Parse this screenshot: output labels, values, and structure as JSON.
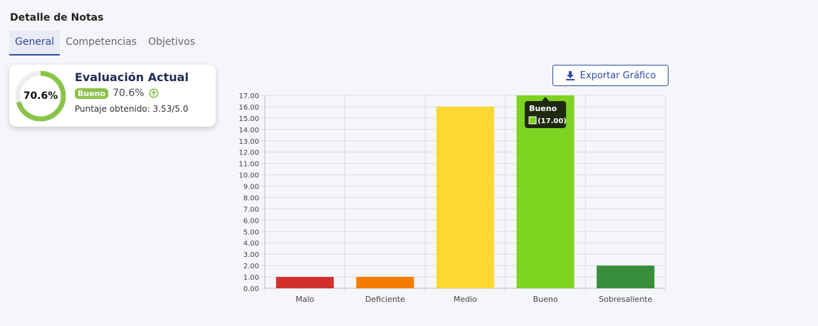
{
  "header": {
    "title": "Detalle de Notas"
  },
  "tabs": [
    {
      "label": "General",
      "active": true
    },
    {
      "label": "Competencias",
      "active": false
    },
    {
      "label": "Objetivos",
      "active": false
    }
  ],
  "summary_card": {
    "donut_label": "70.6%",
    "donut_value": 70.6,
    "title": "Evaluación Actual",
    "badge": "Bueno",
    "percent": "70.6%",
    "score_label": "Puntaje obtenido: 3.53/5.0",
    "accent_color": "#8bc34a"
  },
  "export_button": {
    "label": "Exportar Gráfico",
    "icon": "download-icon"
  },
  "chart_data": {
    "type": "bar",
    "categories": [
      "Malo",
      "Deficiente",
      "Medio",
      "Bueno",
      "Sobresaliente"
    ],
    "values": [
      1,
      1,
      16,
      17,
      2
    ],
    "colors": [
      "#d32f2f",
      "#f57c00",
      "#fdd835",
      "#7ed321",
      "#388e3c"
    ],
    "ylim": [
      0,
      17
    ],
    "ytick_step": 1,
    "grid": true,
    "tooltip": {
      "title": "Bueno",
      "value": "(17.00)",
      "color": "#7ed321",
      "category_index": 3
    }
  }
}
